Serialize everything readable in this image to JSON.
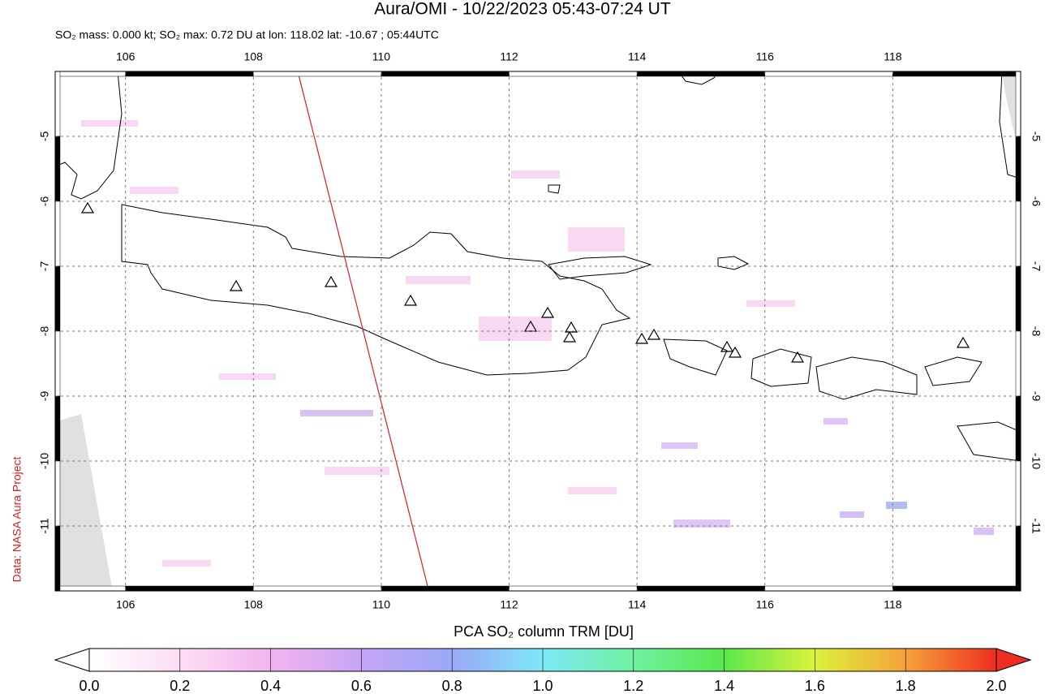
{
  "chart_data": {
    "type": "map",
    "title": "Aura/OMI - 10/22/2023 05:43-07:24 UT",
    "subtitle": "SO₂ mass: 0.000 kt; SO₂ max: 0.72 DU at lon: 118.02 lat: -10.67 ; 05:44UTC",
    "credit": "Data: NASA Aura Project",
    "xlim": [
      104.9,
      120
    ],
    "xticks": [
      106,
      108,
      110,
      112,
      114,
      116,
      118
    ],
    "ylim": [
      -12,
      -4
    ],
    "yticks": [
      -5,
      -6,
      -7,
      -8,
      -9,
      -10,
      -11
    ],
    "grid": true,
    "colorbar": {
      "label": "PCA SO₂ column TRM [DU]",
      "lim": [
        0,
        2
      ],
      "ticks": [
        {
          "value": 0,
          "label": "0.0"
        },
        0.2,
        0.4,
        0.6,
        0.8,
        {
          "value": 1,
          "label": "1.0"
        },
        1.2,
        1.4,
        1.6,
        1.8,
        {
          "value": 2,
          "label": "2.0"
        }
      ]
    }
  }
}
